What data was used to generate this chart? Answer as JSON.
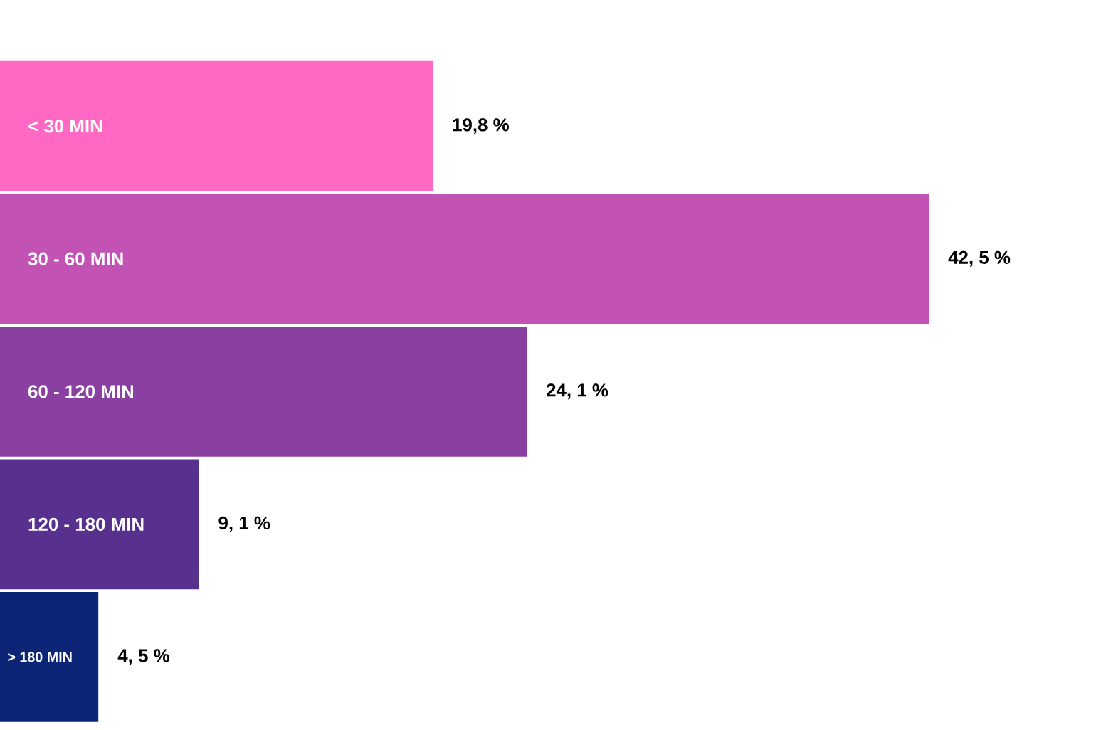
{
  "chart_data": {
    "type": "bar",
    "orientation": "horizontal",
    "tick_labels": false,
    "categories": [
      "< 30 MIN",
      "30 - 60 MIN",
      "60 - 120 MIN",
      "120 - 180 MIN",
      "> 180 MIN"
    ],
    "values": [
      19.8,
      42.5,
      24.1,
      9.1,
      4.5
    ],
    "colors": [
      "#ff69c3",
      "#c253b5",
      "#8a40a1",
      "#57318d",
      "#0d2577"
    ],
    "value_labels": [
      "19,8 %",
      "42, 5 %",
      "24, 1 %",
      "9, 1 %",
      "4, 5 %"
    ]
  }
}
